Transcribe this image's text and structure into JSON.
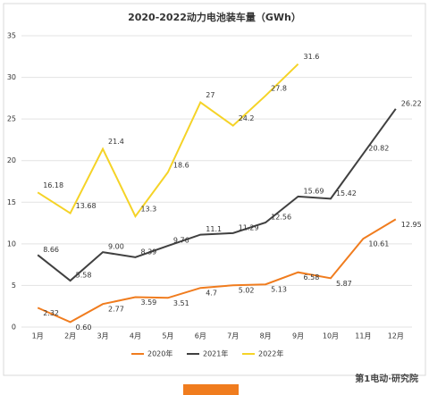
{
  "chart_data": {
    "type": "line",
    "title": "2020-2022动力电池装车量（GWh）",
    "categories": [
      "1月",
      "2月",
      "3月",
      "4月",
      "5月",
      "6月",
      "7月",
      "8月",
      "9月",
      "10月",
      "11月",
      "12月"
    ],
    "series": [
      {
        "name": "2020年",
        "color": "#f07c1e",
        "values": [
          2.32,
          0.6,
          2.77,
          3.59,
          3.51,
          4.7,
          5.02,
          5.13,
          6.58,
          5.87,
          10.61,
          12.95
        ],
        "value_labels": [
          "2.32",
          "0.60",
          "2.77",
          "3.59",
          "3.51",
          "4.7",
          "5.02",
          "5.13",
          "6.58",
          "5.87",
          "10.61",
          "12.95"
        ]
      },
      {
        "name": "2021年",
        "color": "#404040",
        "values": [
          8.66,
          5.58,
          9.0,
          8.39,
          9.76,
          11.1,
          11.29,
          12.56,
          15.69,
          15.42,
          20.82,
          26.22
        ],
        "value_labels": [
          "8.66",
          "5.58",
          "9.00",
          "8.39",
          "9.76",
          "11.1",
          "11.29",
          "12.56",
          "15.69",
          "15.42",
          "20.82",
          "26.22"
        ]
      },
      {
        "name": "2022年",
        "color": "#f5d327",
        "values": [
          16.18,
          13.68,
          21.4,
          13.3,
          18.6,
          27,
          24.2,
          27.8,
          31.6,
          null,
          null,
          null
        ],
        "value_labels": [
          "16.18",
          "13.68",
          "21.4",
          "13.3",
          "18.6",
          "27",
          "24.2",
          "27.8",
          "31.6",
          null,
          null,
          null
        ]
      }
    ],
    "ylim": [
      0,
      35
    ],
    "yticks": [
      0,
      5,
      10,
      15,
      20,
      25,
      30,
      35
    ],
    "grid": true,
    "legend": "bottom",
    "watermark": "第1电动·研究院"
  }
}
